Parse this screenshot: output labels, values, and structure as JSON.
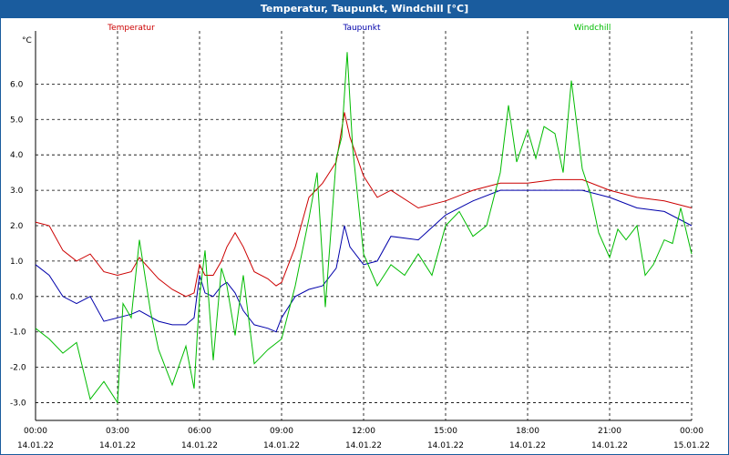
{
  "window": {
    "title": "Temperatur, Taupunkt, Windchill [°C]"
  },
  "chart_data": {
    "type": "line",
    "title": "Temperatur, Taupunkt, Windchill [°C]",
    "ylabel": "°C",
    "xlabel": "",
    "ylim": [
      -3.5,
      7.5
    ],
    "xlim_hours": [
      0,
      24
    ],
    "y_ticks": [
      "-3.0",
      "-2.0",
      "-1.0",
      "0.0",
      "1.0",
      "2.0",
      "3.0",
      "4.0",
      "5.0",
      "6.0"
    ],
    "y_tick_values": [
      -3,
      -2,
      -1,
      0,
      1,
      2,
      3,
      4,
      5,
      6
    ],
    "x_ticks": [
      {
        "time": "00:00",
        "date": "14.01.22",
        "h": 0
      },
      {
        "time": "03:00",
        "date": "14.01.22",
        "h": 3
      },
      {
        "time": "06:00",
        "date": "14.01.22",
        "h": 6
      },
      {
        "time": "09:00",
        "date": "14.01.22",
        "h": 9
      },
      {
        "time": "12:00",
        "date": "14.01.22",
        "h": 12
      },
      {
        "time": "15:00",
        "date": "14.01.22",
        "h": 15
      },
      {
        "time": "18:00",
        "date": "14.01.22",
        "h": 18
      },
      {
        "time": "21:00",
        "date": "14.01.22",
        "h": 21
      },
      {
        "time": "00:00",
        "date": "15.01.22",
        "h": 24
      }
    ],
    "legend": "top",
    "grid": true,
    "series": [
      {
        "name": "Temperatur",
        "color": "#cc0000",
        "x": [
          0,
          0.5,
          1,
          1.5,
          2,
          2.5,
          3,
          3.5,
          3.8,
          4.5,
          5,
          5.5,
          5.8,
          6,
          6.2,
          6.5,
          6.8,
          7,
          7.3,
          7.6,
          8,
          8.5,
          8.8,
          9,
          9.5,
          10,
          10.5,
          11,
          11.3,
          11.5,
          12,
          12.5,
          13,
          14,
          15,
          16,
          17,
          18,
          19,
          20,
          21,
          22,
          23,
          24
        ],
        "values": [
          2.1,
          2.0,
          1.3,
          1.0,
          1.2,
          0.7,
          0.6,
          0.7,
          1.1,
          0.5,
          0.2,
          0.0,
          0.1,
          0.9,
          0.6,
          0.6,
          1.0,
          1.4,
          1.8,
          1.4,
          0.7,
          0.5,
          0.3,
          0.4,
          1.4,
          2.8,
          3.2,
          3.8,
          5.2,
          4.5,
          3.4,
          2.8,
          3.0,
          2.5,
          2.7,
          3.0,
          3.2,
          3.2,
          3.3,
          3.3,
          3.0,
          2.8,
          2.7,
          2.5
        ]
      },
      {
        "name": "Taupunkt",
        "color": "#0000aa",
        "x": [
          0,
          0.5,
          1,
          1.5,
          2,
          2.5,
          3,
          3.5,
          3.8,
          4.5,
          5,
          5.5,
          5.8,
          6,
          6.2,
          6.5,
          6.8,
          7,
          7.3,
          7.6,
          8,
          8.5,
          8.8,
          9,
          9.5,
          10,
          10.5,
          11,
          11.3,
          11.5,
          12,
          12.5,
          13,
          14,
          15,
          16,
          17,
          18,
          19,
          20,
          21,
          22,
          23,
          24
        ],
        "values": [
          0.9,
          0.6,
          0.0,
          -0.2,
          0.0,
          -0.7,
          -0.6,
          -0.5,
          -0.4,
          -0.7,
          -0.8,
          -0.8,
          -0.6,
          0.6,
          0.1,
          0.0,
          0.3,
          0.4,
          0.1,
          -0.4,
          -0.8,
          -0.9,
          -1.0,
          -0.6,
          0.0,
          0.2,
          0.3,
          0.8,
          2.0,
          1.4,
          0.9,
          1.0,
          1.7,
          1.6,
          2.3,
          2.7,
          3.0,
          3.0,
          3.0,
          3.0,
          2.8,
          2.5,
          2.4,
          2.0
        ]
      },
      {
        "name": "Windchill",
        "color": "#00bb00",
        "x": [
          0,
          0.5,
          1,
          1.5,
          2,
          2.5,
          3,
          3.2,
          3.5,
          3.8,
          4.2,
          4.5,
          5,
          5.5,
          5.8,
          6,
          6.2,
          6.5,
          6.8,
          7,
          7.3,
          7.6,
          8,
          8.5,
          9,
          9.5,
          10,
          10.3,
          10.6,
          11,
          11.2,
          11.4,
          11.6,
          12,
          12.5,
          13,
          13.5,
          14,
          14.5,
          15,
          15.5,
          16,
          16.5,
          17,
          17.3,
          17.6,
          18,
          18.3,
          18.6,
          19,
          19.3,
          19.6,
          20,
          20.3,
          20.6,
          21,
          21.3,
          21.6,
          22,
          22.3,
          22.6,
          23,
          23.3,
          23.6,
          24
        ],
        "values": [
          -0.9,
          -1.2,
          -1.6,
          -1.3,
          -2.9,
          -2.4,
          -3.0,
          -0.2,
          -0.6,
          1.6,
          -0.4,
          -1.5,
          -2.5,
          -1.4,
          -2.6,
          0.0,
          1.3,
          -1.8,
          0.8,
          0.3,
          -1.1,
          0.6,
          -1.9,
          -1.5,
          -1.2,
          0.3,
          2.2,
          3.5,
          -0.3,
          3.9,
          4.5,
          6.9,
          4.2,
          1.2,
          0.3,
          0.9,
          0.6,
          1.2,
          0.6,
          2.0,
          2.4,
          1.7,
          2.0,
          3.5,
          5.4,
          3.8,
          4.7,
          3.9,
          4.8,
          4.6,
          3.5,
          6.1,
          3.6,
          2.9,
          1.8,
          1.1,
          1.9,
          1.6,
          2.0,
          0.6,
          0.9,
          1.6,
          1.5,
          2.5,
          1.2
        ]
      }
    ]
  }
}
